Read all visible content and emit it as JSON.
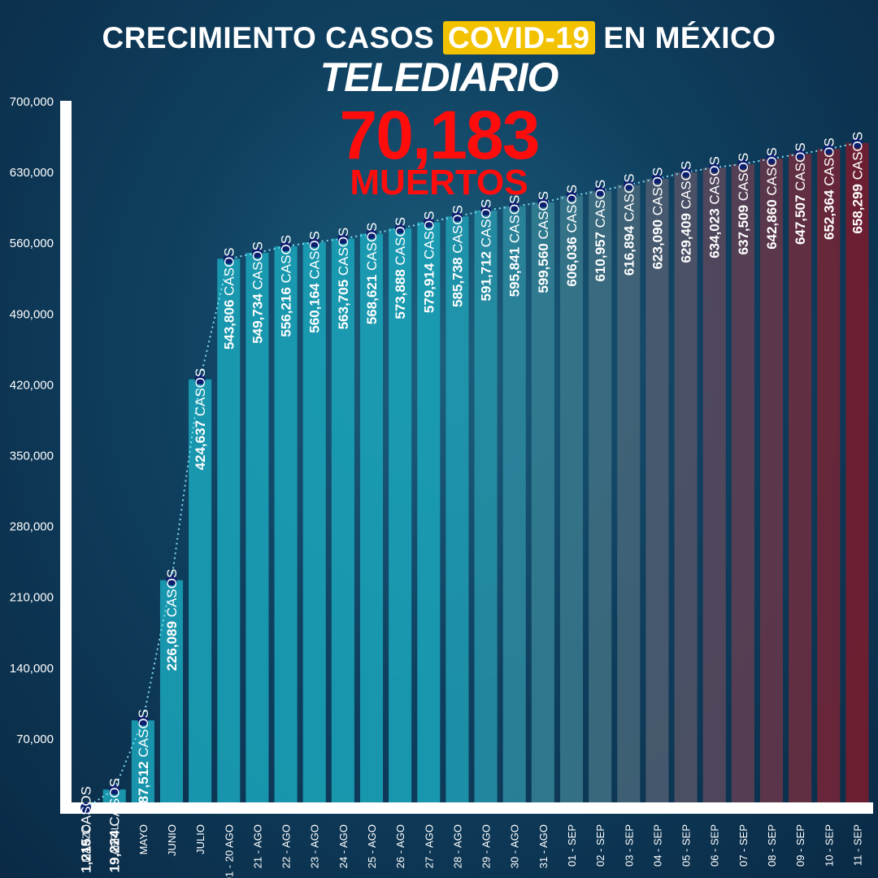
{
  "header": {
    "title_before": "CRECIMIENTO CASOS",
    "title_highlight": "COVID-19",
    "title_after": "EN MÉXICO",
    "brand": "TELEDIARIO"
  },
  "deaths": {
    "value": "70,183",
    "label": "MUERTOS"
  },
  "colors": {
    "accent_red": "#ff0d0d",
    "highlight": "#f2c200",
    "teal_bar": "#1aa3b8",
    "red_bar": "#7a1c2e",
    "dot": "#0a1f6e"
  },
  "chart_data": {
    "type": "bar",
    "ylim": [
      0,
      700000
    ],
    "yticks": [
      "70,000",
      "140,000",
      "210,000",
      "280,000",
      "350,000",
      "420,000",
      "490,000",
      "560,000",
      "630,000",
      "700,000"
    ],
    "categories": [
      "MARZO",
      "ABRIL",
      "MAYO",
      "JUNIO",
      "JULIO",
      "01 - 20 AGO",
      "21 - AGO",
      "22 - AGO",
      "23 - AGO",
      "24 - AGO",
      "25 - AGO",
      "26 - AGO",
      "27 - AGO",
      "28 - AGO",
      "29 - AGO",
      "30 - AGO",
      "31 - AGO",
      "01 - SEP",
      "02 - SEP",
      "03 - SEP",
      "04 - SEP",
      "05 - SEP",
      "06 - SEP",
      "07 - SEP",
      "08 - SEP",
      "09 - SEP",
      "10 - SEP",
      "11 - SEP"
    ],
    "values": [
      1215,
      19224,
      87512,
      226089,
      424637,
      543806,
      549734,
      556216,
      560164,
      563705,
      568621,
      573888,
      579914,
      585738,
      591712,
      595841,
      599560,
      606036,
      610957,
      616894,
      623090,
      629409,
      634023,
      637509,
      642860,
      647507,
      652364,
      658299
    ],
    "labels": [
      "1,215",
      "19,224",
      "87,512",
      "226,089",
      "424,637",
      "543,806",
      "549,734",
      "556,216",
      "560,164",
      "563,705",
      "568,621",
      "573,888",
      "579,914",
      "585,738",
      "591,712",
      "595,841",
      "599,560",
      "606,036",
      "610,957",
      "616,894",
      "623,090",
      "629,409",
      "634,023",
      "637,509",
      "642,860",
      "647,507",
      "652,364",
      "658,299"
    ],
    "label_suffix": "CASOS"
  }
}
